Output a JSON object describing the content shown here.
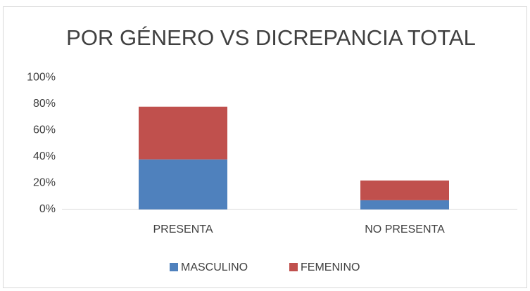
{
  "chart_data": {
    "type": "stacked_bar",
    "title": "POR GÉNERO VS DICREPANCIA TOTAL",
    "categories": [
      "PRESENTA",
      "NO PRESENTA"
    ],
    "series": [
      {
        "name": "MASCULINO",
        "color": "#4f81bd",
        "values": [
          38,
          7
        ]
      },
      {
        "name": "FEMENINO",
        "color": "#c0504d",
        "values": [
          40,
          15
        ]
      }
    ],
    "ylim": [
      0,
      100
    ],
    "yticks": [
      {
        "value": 0,
        "label": "0%"
      },
      {
        "value": 20,
        "label": "20%"
      },
      {
        "value": 40,
        "label": "40%"
      },
      {
        "value": 60,
        "label": "60%"
      },
      {
        "value": 80,
        "label": "80%"
      },
      {
        "value": 100,
        "label": "100%"
      }
    ],
    "grid": false,
    "legend": "bottom"
  }
}
